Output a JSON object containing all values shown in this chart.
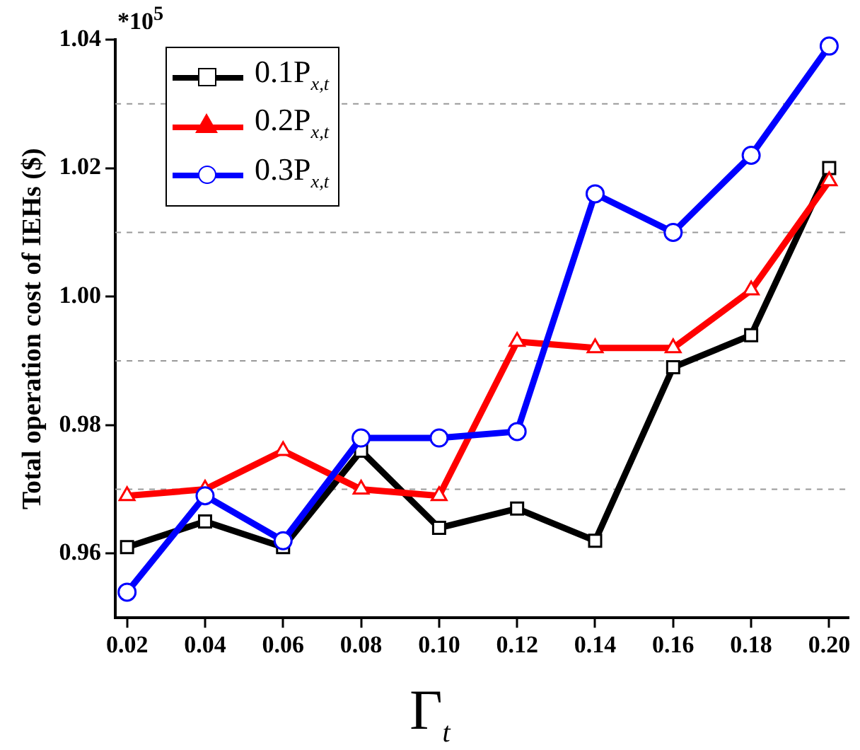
{
  "chart_data": {
    "type": "line",
    "ylabel": "Total operation cost of IEHs ($)",
    "xlabel": "Γ$_{t}$",
    "annotations": [
      "*10$^{5}$"
    ],
    "x": [
      0.02,
      0.04,
      0.06,
      0.08,
      0.1,
      0.12,
      0.14,
      0.16,
      0.18,
      0.2
    ],
    "series": [
      {
        "name": "0.1P$_{x,t}$",
        "color": "#000000",
        "marker": "square",
        "values": [
          0.961,
          0.965,
          0.961,
          0.976,
          0.964,
          0.967,
          0.962,
          0.989,
          0.994,
          1.02
        ]
      },
      {
        "name": "0.2P$_{x,t}$",
        "color": "#ff0000",
        "marker": "triangle",
        "values": [
          0.969,
          0.97,
          0.976,
          0.97,
          0.969,
          0.993,
          0.992,
          0.992,
          1.001,
          1.018
        ]
      },
      {
        "name": "0.3P$_{x,t}$",
        "color": "#0000ff",
        "marker": "circle",
        "values": [
          0.954,
          0.969,
          0.962,
          0.978,
          0.978,
          0.979,
          1.016,
          1.01,
          1.022,
          1.039
        ]
      }
    ],
    "xlim": [
      0.017,
      0.205
    ],
    "xticks": [
      0.02,
      0.04,
      0.06,
      0.08,
      {
        "value": 0.1,
        "label": "0.10"
      },
      0.12,
      0.14,
      0.16,
      0.18,
      {
        "value": 0.2,
        "label": "0.20"
      }
    ],
    "ylim": [
      0.95,
      1.04
    ],
    "yticks": [
      0.96,
      {
        "value": 0.97,
        "label": null
      },
      0.98,
      {
        "value": 0.99,
        "label": null
      },
      {
        "value": 1.0,
        "label": "1.00"
      },
      {
        "value": 1.01,
        "label": null
      },
      1.02,
      {
        "value": 1.03,
        "label": null
      },
      1.04
    ],
    "grid": "y",
    "legend": "top left",
    "line_style": "solid"
  }
}
